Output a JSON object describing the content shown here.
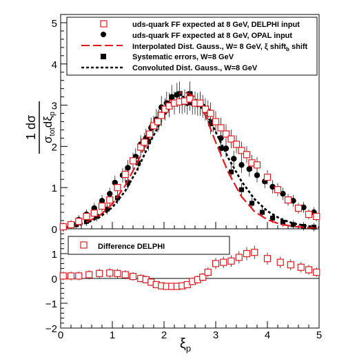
{
  "chart_data": [
    {
      "type": "scatter",
      "panel": "main",
      "xlim": [
        0,
        5
      ],
      "ylim": [
        0,
        5.2
      ],
      "yticks": [
        "0",
        "1",
        "2",
        "3",
        "4",
        "5"
      ],
      "ylabel": {
        "numerator": "1 dσ",
        "denominator": "σ",
        "denominator_sub": "tot",
        "denominator_tail": "dξ",
        "denominator_tail_sub": "p"
      },
      "legend_position": "top-right",
      "series": [
        {
          "name": "uds-quark FF expected at 8 GeV, DELPHI input",
          "style": "open-square",
          "color": "#e8161b",
          "x": [
            0.05,
            0.2,
            0.35,
            0.5,
            0.65,
            0.8,
            0.95,
            1.1,
            1.25,
            1.4,
            1.55,
            1.62,
            1.72,
            1.8,
            1.88,
            1.95,
            2.02,
            2.1,
            2.2,
            2.3,
            2.4,
            2.5,
            2.6,
            2.7,
            2.8,
            2.9,
            3.0,
            3.1,
            3.2,
            3.3,
            3.4,
            3.5,
            3.6,
            3.7,
            3.8,
            4.0,
            4.2,
            4.4,
            4.6,
            4.8,
            4.95
          ],
          "y": [
            0.05,
            0.1,
            0.18,
            0.3,
            0.38,
            0.55,
            0.7,
            1.0,
            1.32,
            1.65,
            1.98,
            2.1,
            2.3,
            2.5,
            2.6,
            2.75,
            2.9,
            2.98,
            3.05,
            3.08,
            3.1,
            3.15,
            3.05,
            3.05,
            2.9,
            2.8,
            2.6,
            2.45,
            2.3,
            2.18,
            2.05,
            1.9,
            1.8,
            1.6,
            1.55,
            1.25,
            0.95,
            0.7,
            0.5,
            0.35,
            0.3
          ]
        },
        {
          "name": "uds-quark FF expected at 8 GeV, OPAL input",
          "style": "filled-circle",
          "color": "#000000",
          "x": [
            0.05,
            0.2,
            0.35,
            0.5,
            0.65,
            0.8,
            0.95,
            1.05,
            1.2,
            1.3,
            1.45,
            1.55,
            1.65,
            1.75,
            1.85,
            1.95,
            2.05,
            2.15,
            2.25,
            2.35,
            2.45,
            2.55,
            2.65,
            2.75,
            2.85,
            2.95,
            3.1,
            3.2,
            3.35,
            3.5,
            3.65,
            3.8,
            3.95,
            4.1,
            4.3,
            4.5,
            4.7,
            4.9
          ],
          "y": [
            0.03,
            0.1,
            0.22,
            0.35,
            0.5,
            0.68,
            0.85,
            1.12,
            1.3,
            1.48,
            1.75,
            2.05,
            2.2,
            2.45,
            2.65,
            2.95,
            3.05,
            3.2,
            3.25,
            3.07,
            3.05,
            3.05,
            3.02,
            2.97,
            2.85,
            2.6,
            2.2,
            1.95,
            1.7,
            1.55,
            1.45,
            1.3,
            1.15,
            1.02,
            0.85,
            0.68,
            0.52,
            0.4
          ]
        },
        {
          "name": "Interpolated Dist. Gauss., W= 8 GeV,  ξ shift",
          "name_sub": "b",
          "style": "dashed-line",
          "color": "#e8161b",
          "x": [
            0.0,
            0.25,
            0.5,
            0.75,
            1.0,
            1.25,
            1.5,
            1.75,
            2.0,
            2.2,
            2.4,
            2.6,
            2.8,
            3.0,
            3.25,
            3.5,
            3.75,
            4.0,
            4.25,
            4.5,
            4.75,
            5.0
          ],
          "y": [
            0.02,
            0.07,
            0.16,
            0.32,
            0.6,
            1.05,
            1.65,
            2.35,
            2.95,
            3.25,
            3.32,
            3.2,
            2.75,
            2.1,
            1.35,
            0.78,
            0.42,
            0.22,
            0.11,
            0.06,
            0.03,
            0.02
          ]
        },
        {
          "name": "Systematic errors, W=8 GeV",
          "style": "filled-square",
          "color": "#000000",
          "x": [
            0.3,
            0.5,
            0.7,
            0.9,
            1.1,
            1.3,
            1.5,
            1.7,
            1.9,
            2.1,
            2.3,
            2.5,
            2.7,
            2.9,
            3.1,
            3.3,
            3.5,
            3.7,
            3.9,
            4.1,
            4.3,
            4.5,
            4.7,
            4.9
          ],
          "y": [
            0.1,
            0.18,
            0.3,
            0.48,
            0.75,
            1.12,
            1.6,
            2.12,
            2.65,
            3.02,
            3.28,
            3.28,
            3.02,
            2.55,
            1.95,
            1.38,
            0.95,
            0.62,
            0.4,
            0.26,
            0.16,
            0.1,
            0.06,
            0.04
          ]
        },
        {
          "name": "Convoluted Dist. Gauss., W=8 GeV",
          "style": "dotted-line",
          "color": "#000000",
          "x": [
            0.0,
            0.25,
            0.5,
            0.75,
            1.0,
            1.25,
            1.5,
            1.75,
            2.0,
            2.2,
            2.4,
            2.6,
            2.8,
            3.0,
            3.25,
            3.5,
            3.75,
            4.0,
            4.25,
            4.5,
            4.75,
            5.0
          ],
          "y": [
            0.02,
            0.06,
            0.14,
            0.28,
            0.52,
            0.92,
            1.48,
            2.15,
            2.75,
            3.08,
            3.22,
            3.15,
            2.85,
            2.35,
            1.7,
            1.15,
            0.72,
            0.43,
            0.24,
            0.13,
            0.07,
            0.04
          ]
        }
      ]
    },
    {
      "type": "scatter",
      "panel": "difference",
      "xlim": [
        0,
        5
      ],
      "ylim": [
        -2,
        2
      ],
      "yticks": [
        "−2",
        "−1",
        "0",
        "1"
      ],
      "xticks": [
        "0",
        "1",
        "2",
        "3",
        "4",
        "5"
      ],
      "xlabel": {
        "text": "ξ",
        "sub": "p"
      },
      "legend_position": "top-left",
      "series": [
        {
          "name": "Difference DELPHI",
          "style": "open-square",
          "color": "#e8161b",
          "x": [
            0.05,
            0.2,
            0.35,
            0.55,
            0.75,
            0.95,
            1.1,
            1.25,
            1.4,
            1.55,
            1.65,
            1.75,
            1.85,
            1.95,
            2.05,
            2.15,
            2.25,
            2.35,
            2.45,
            2.55,
            2.65,
            2.75,
            2.85,
            3.0,
            3.15,
            3.3,
            3.45,
            3.6,
            3.75,
            4.0,
            4.25,
            4.45,
            4.65,
            4.8,
            4.95
          ],
          "y": [
            0.1,
            0.1,
            0.1,
            0.15,
            0.2,
            0.22,
            0.2,
            0.15,
            0.08,
            0.0,
            -0.05,
            -0.15,
            -0.25,
            -0.3,
            -0.32,
            -0.32,
            -0.32,
            -0.3,
            -0.25,
            -0.12,
            -0.05,
            0.05,
            0.25,
            0.6,
            0.65,
            0.7,
            0.85,
            1.0,
            1.05,
            0.8,
            0.65,
            0.55,
            0.45,
            0.35,
            0.25
          ]
        }
      ]
    }
  ]
}
